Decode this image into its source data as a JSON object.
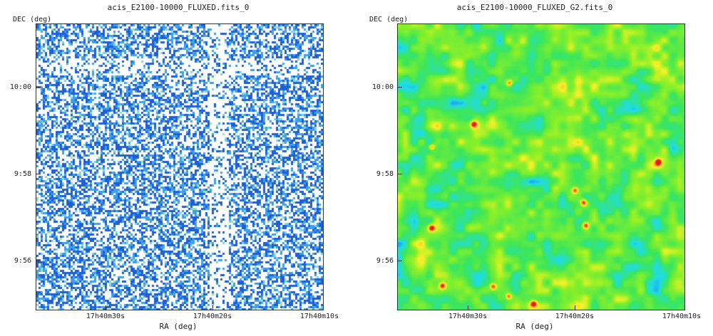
{
  "panels": [
    {
      "title": "acis_E2100-10000_FLUXED.fits_0",
      "y_axis_label": "DEC (deg)",
      "x_axis_label": "RA (deg)",
      "y_ticks": [
        "10:00",
        "9:58",
        "9:56"
      ],
      "x_ticks": [
        "17h40m30s",
        "17h40m20s",
        "17h40m10s"
      ],
      "style": "raw-counts"
    },
    {
      "title": "acis_E2100-10000_FLUXED_G2.fits_0",
      "y_axis_label": "DEC (deg)",
      "x_axis_label": "RA (deg)",
      "y_ticks": [
        "10:00",
        "9:58",
        "9:56"
      ],
      "x_ticks": [
        "17h40m30s",
        "17h40m20s",
        "17h40m10s"
      ],
      "style": "smoothed"
    }
  ],
  "colors": {
    "frame": "#333333",
    "raw_blue_dark": "#1f5fd6",
    "raw_blue_light": "#3fa0ea",
    "smooth_green": "#55ee22",
    "smooth_cyan": "#22dddd",
    "smooth_yellow": "#ffee22",
    "smooth_red": "#ee2222"
  }
}
